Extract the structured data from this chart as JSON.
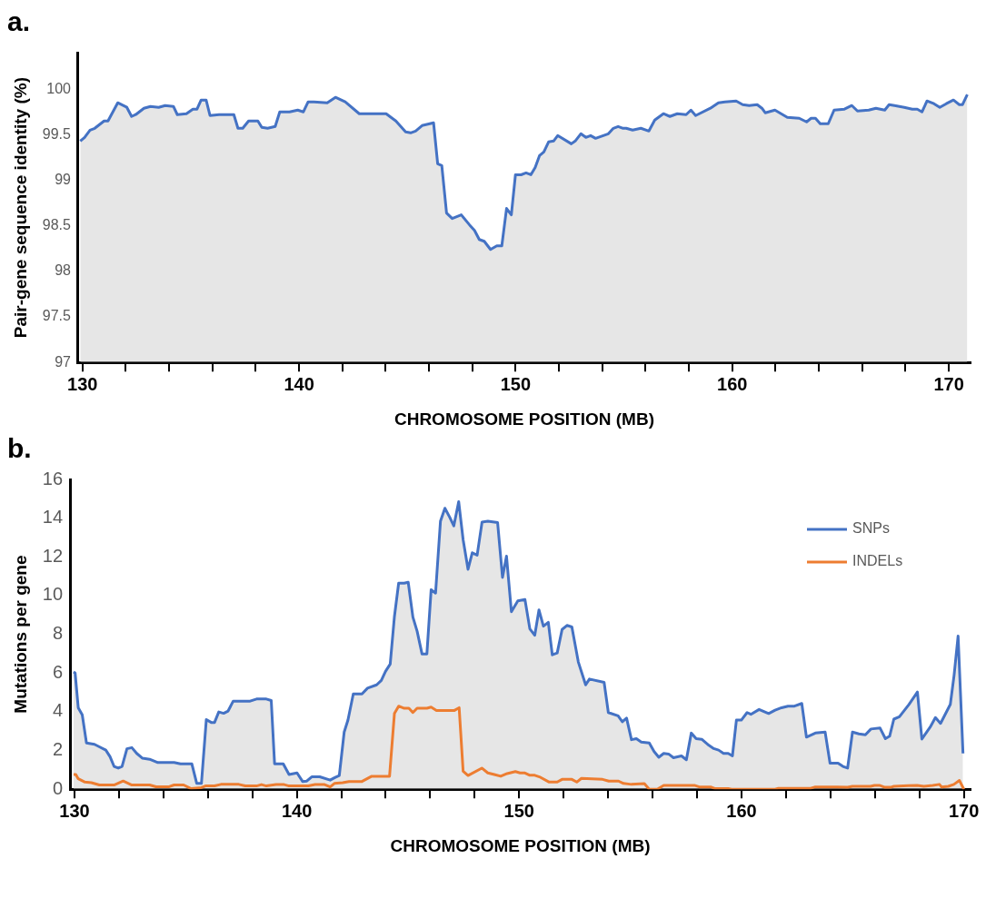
{
  "chart_data": [
    {
      "type": "area",
      "title": "a.",
      "xlabel": "CHROMOSOME POSITION (MB)",
      "ylabel": "Pair-gene sequence identity (%)",
      "xlim": [
        129.8,
        171
      ],
      "xticks": [
        130,
        {
          "value": 132,
          "label": null
        },
        {
          "value": 134,
          "label": null
        },
        {
          "value": 136,
          "label": null
        },
        {
          "value": 138,
          "label": null
        },
        140,
        {
          "value": 142,
          "label": null
        },
        {
          "value": 144,
          "label": null
        },
        {
          "value": 146,
          "label": null
        },
        {
          "value": 148,
          "label": null
        },
        150,
        {
          "value": 152,
          "label": null
        },
        {
          "value": 154,
          "label": null
        },
        {
          "value": 156,
          "label": null
        },
        {
          "value": 158,
          "label": null
        },
        160,
        {
          "value": 162,
          "label": null
        },
        {
          "value": 164,
          "label": null
        },
        {
          "value": 166,
          "label": null
        },
        {
          "value": 168,
          "label": null
        },
        170
      ],
      "ylim": [
        97,
        100.4
      ],
      "yticks": [
        97,
        97.5,
        98,
        98.5,
        99,
        99.5,
        100
      ],
      "grid": false,
      "legend": false,
      "series": [
        {
          "color": "#4472c4",
          "x": [
            129.9,
            130.1,
            130.35,
            130.57,
            131.0,
            131.18,
            131.63,
            132.05,
            132.27,
            132.46,
            132.84,
            133.14,
            133.52,
            133.82,
            134.2,
            134.38,
            134.8,
            135.1,
            135.29,
            135.48,
            135.71,
            135.89,
            136.31,
            136.6,
            136.99,
            137.18,
            137.4,
            137.67,
            138.1,
            138.28,
            138.55,
            138.9,
            139.11,
            139.56,
            139.94,
            140.2,
            140.42,
            140.69,
            141.3,
            141.68,
            142.13,
            142.78,
            143.26,
            144.02,
            144.47,
            144.92,
            145.15,
            145.38,
            145.68,
            146.21,
            146.4,
            146.59,
            146.81,
            147.07,
            147.49,
            147.87,
            148.1,
            148.32,
            148.55,
            148.84,
            149.13,
            149.36,
            149.58,
            149.8,
            149.99,
            150.25,
            150.48,
            150.7,
            150.9,
            151.1,
            151.3,
            151.52,
            151.75,
            151.94,
            152.57,
            152.75,
            153.01,
            153.24,
            153.46,
            153.69,
            154.28,
            154.51,
            154.73,
            154.96,
            155.1,
            155.4,
            155.78,
            156.15,
            156.42,
            156.82,
            157.12,
            157.46,
            157.87,
            158.09,
            158.31,
            158.99,
            159.36,
            159.66,
            160.18,
            160.48,
            160.78,
            161.15,
            161.37,
            161.52,
            161.97,
            162.54,
            163.09,
            163.43,
            163.64,
            163.84,
            164.06,
            164.43,
            164.7,
            165.18,
            165.52,
            165.78,
            166.3,
            166.63,
            167.04,
            167.24,
            167.49,
            167.94,
            168.31,
            168.54,
            168.76,
            168.99,
            169.31,
            169.58,
            169.88,
            170.21,
            170.48,
            170.63,
            170.85
          ],
          "values": [
            99.43,
            99.47,
            99.55,
            99.57,
            99.65,
            99.65,
            99.85,
            99.8,
            99.7,
            99.72,
            99.79,
            99.81,
            99.8,
            99.82,
            99.81,
            99.72,
            99.73,
            99.78,
            99.78,
            99.88,
            99.88,
            99.71,
            99.72,
            99.72,
            99.72,
            99.57,
            99.57,
            99.65,
            99.65,
            99.58,
            99.57,
            99.59,
            99.75,
            99.75,
            99.77,
            99.75,
            99.86,
            99.86,
            99.85,
            99.91,
            99.86,
            99.73,
            99.73,
            99.73,
            99.65,
            99.53,
            99.52,
            99.54,
            99.6,
            99.63,
            99.18,
            99.16,
            98.64,
            98.58,
            98.62,
            98.51,
            98.45,
            98.35,
            98.33,
            98.24,
            98.28,
            98.28,
            98.69,
            98.62,
            99.06,
            99.06,
            99.08,
            99.06,
            99.14,
            99.27,
            99.31,
            99.42,
            99.43,
            99.49,
            99.4,
            99.43,
            99.51,
            99.47,
            99.49,
            99.46,
            99.51,
            99.57,
            99.59,
            99.57,
            99.57,
            99.55,
            99.57,
            99.54,
            99.66,
            99.73,
            99.7,
            99.73,
            99.72,
            99.77,
            99.71,
            99.79,
            99.85,
            99.86,
            99.87,
            99.83,
            99.82,
            99.83,
            99.79,
            99.74,
            99.77,
            99.69,
            99.68,
            99.64,
            99.68,
            99.68,
            99.62,
            99.62,
            99.77,
            99.78,
            99.82,
            99.76,
            99.77,
            99.79,
            99.77,
            99.83,
            99.82,
            99.8,
            99.78,
            99.78,
            99.75,
            99.87,
            99.84,
            99.8,
            99.84,
            99.88,
            99.83,
            99.83,
            99.94
          ]
        }
      ]
    },
    {
      "type": "area",
      "title": "b.",
      "xlabel": "CHROMOSOME POSITION (MB)",
      "ylabel": "Mutations per gene",
      "xlim": [
        129.8,
        170.3
      ],
      "xticks": [
        130,
        {
          "value": 132,
          "label": null
        },
        {
          "value": 134,
          "label": null
        },
        {
          "value": 136,
          "label": null
        },
        {
          "value": 138,
          "label": null
        },
        140,
        {
          "value": 142,
          "label": null
        },
        {
          "value": 144,
          "label": null
        },
        {
          "value": 146,
          "label": null
        },
        {
          "value": 148,
          "label": null
        },
        150,
        {
          "value": 152,
          "label": null
        },
        {
          "value": 154,
          "label": null
        },
        {
          "value": 156,
          "label": null
        },
        {
          "value": 158,
          "label": null
        },
        160,
        {
          "value": 162,
          "label": null
        },
        {
          "value": 164,
          "label": null
        },
        {
          "value": 166,
          "label": null
        },
        {
          "value": 168,
          "label": null
        },
        170
      ],
      "ylim": [
        0,
        16
      ],
      "yticks": [
        0,
        2,
        4,
        6,
        8,
        10,
        12,
        14,
        16
      ],
      "grid": false,
      "legend": "top right",
      "series": [
        {
          "name": "SNPs",
          "color": "#4472c4",
          "x": [
            129.96,
            130.03,
            130.17,
            130.35,
            130.54,
            130.9,
            131.12,
            131.41,
            131.6,
            131.78,
            131.97,
            132.14,
            132.36,
            132.58,
            132.8,
            133.06,
            133.38,
            133.75,
            134.48,
            134.77,
            135.28,
            135.5,
            135.71,
            135.93,
            136.15,
            136.3,
            136.49,
            136.71,
            136.91,
            137.14,
            137.9,
            138.19,
            138.63,
            138.85,
            139.0,
            139.39,
            139.65,
            140.01,
            140.26,
            140.45,
            140.67,
            141.03,
            141.5,
            141.69,
            141.91,
            142.13,
            142.3,
            142.54,
            142.93,
            143.18,
            143.59,
            143.8,
            143.99,
            144.2,
            144.39,
            144.58,
            144.83,
            145.01,
            145.22,
            145.41,
            145.63,
            145.85,
            146.04,
            146.24,
            146.46,
            146.66,
            146.87,
            147.06,
            147.28,
            147.48,
            147.7,
            147.89,
            148.11,
            148.33,
            148.59,
            149.03,
            149.25,
            149.43,
            149.65,
            149.94,
            150.26,
            150.48,
            150.7,
            150.89,
            151.09,
            151.31,
            151.49,
            151.71,
            151.93,
            152.15,
            152.37,
            152.66,
            152.99,
            153.16,
            153.82,
            154.01,
            154.45,
            154.64,
            154.83,
            155.05,
            155.27,
            155.49,
            155.85,
            156.07,
            156.28,
            156.5,
            156.72,
            156.94,
            157.3,
            157.52,
            157.74,
            157.96,
            158.21,
            158.53,
            158.75,
            158.97,
            159.19,
            159.4,
            159.59,
            159.77,
            159.99,
            160.25,
            160.42,
            160.79,
            161.22,
            161.51,
            161.8,
            162.09,
            162.38,
            162.71,
            162.92,
            163.32,
            163.76,
            163.98,
            164.34,
            164.56,
            164.77,
            164.99,
            165.28,
            165.57,
            165.82,
            166.23,
            166.47,
            166.66,
            166.85,
            167.1,
            167.53,
            167.91,
            168.11,
            168.48,
            168.72,
            168.95,
            169.39,
            169.56,
            169.74,
            169.96
          ],
          "values": [
            6.06,
            6.0,
            4.21,
            3.84,
            2.39,
            2.32,
            2.19,
            2.02,
            1.68,
            1.18,
            1.09,
            1.18,
            2.09,
            2.15,
            1.85,
            1.6,
            1.55,
            1.38,
            1.38,
            1.31,
            1.31,
            0.3,
            0.3,
            3.6,
            3.45,
            3.45,
            3.99,
            3.92,
            4.04,
            4.55,
            4.55,
            4.66,
            4.66,
            4.58,
            1.31,
            1.31,
            0.76,
            0.84,
            0.4,
            0.42,
            0.64,
            0.64,
            0.47,
            0.59,
            0.71,
            2.95,
            3.57,
            4.92,
            4.92,
            5.22,
            5.39,
            5.62,
            6.09,
            6.46,
            8.92,
            10.64,
            10.64,
            10.69,
            8.89,
            8.16,
            6.99,
            6.99,
            10.3,
            10.13,
            13.84,
            14.51,
            14.06,
            13.6,
            14.85,
            12.88,
            11.36,
            12.21,
            12.09,
            13.8,
            13.84,
            13.77,
            10.94,
            12.04,
            9.17,
            9.73,
            9.8,
            8.28,
            7.95,
            9.26,
            8.42,
            8.62,
            6.94,
            7.04,
            8.25,
            8.46,
            8.38,
            6.57,
            5.39,
            5.69,
            5.52,
            3.96,
            3.79,
            3.48,
            3.67,
            2.56,
            2.61,
            2.44,
            2.39,
            1.94,
            1.65,
            1.85,
            1.82,
            1.63,
            1.72,
            1.52,
            2.9,
            2.61,
            2.58,
            2.27,
            2.1,
            2.02,
            1.85,
            1.85,
            1.72,
            3.57,
            3.57,
            3.96,
            3.87,
            4.12,
            3.91,
            4.08,
            4.21,
            4.29,
            4.29,
            4.43,
            2.69,
            2.9,
            2.95,
            1.35,
            1.35,
            1.18,
            1.09,
            2.95,
            2.86,
            2.81,
            3.11,
            3.16,
            2.61,
            2.74,
            3.62,
            3.74,
            4.38,
            5.02,
            2.59,
            3.2,
            3.7,
            3.4,
            4.38,
            5.89,
            7.91,
            1.85
          ]
        },
        {
          "name": "INDELs",
          "type": "line",
          "color": "#ed7d31",
          "x": [
            129.96,
            130.06,
            130.17,
            130.47,
            130.76,
            131.12,
            131.78,
            132.19,
            132.58,
            133.38,
            133.67,
            134.26,
            134.48,
            134.91,
            135.25,
            135.71,
            135.89,
            136.3,
            136.59,
            137.39,
            137.68,
            138.19,
            138.41,
            138.63,
            139.07,
            139.43,
            139.65,
            140.52,
            140.82,
            141.25,
            141.5,
            141.69,
            142.06,
            142.35,
            142.93,
            143.37,
            144.17,
            144.39,
            144.58,
            144.83,
            145.04,
            145.22,
            145.41,
            145.85,
            146.04,
            146.28,
            147.09,
            147.3,
            147.48,
            147.7,
            148.32,
            148.59,
            148.88,
            149.17,
            149.46,
            149.83,
            150.04,
            150.26,
            150.48,
            150.7,
            150.91,
            151.35,
            151.71,
            151.93,
            152.37,
            152.59,
            152.8,
            153.75,
            154.03,
            154.47,
            154.69,
            155.05,
            155.63,
            155.85,
            156.21,
            156.5,
            157.88,
            158.1,
            158.61,
            158.82,
            159.4,
            159.55,
            161.51,
            161.66,
            163.11,
            163.32,
            164.3,
            164.77,
            164.99,
            165.8,
            165.98,
            166.2,
            166.45,
            166.7,
            166.85,
            167.5,
            167.9,
            168.2,
            168.6,
            168.9,
            169.0,
            169.3,
            169.55,
            169.8,
            170.0
          ],
          "values": [
            0.76,
            0.76,
            0.54,
            0.37,
            0.34,
            0.22,
            0.22,
            0.42,
            0.22,
            0.22,
            0.13,
            0.13,
            0.22,
            0.22,
            0.03,
            0.08,
            0.17,
            0.17,
            0.25,
            0.25,
            0.17,
            0.17,
            0.24,
            0.17,
            0.24,
            0.24,
            0.17,
            0.17,
            0.24,
            0.24,
            0.12,
            0.3,
            0.34,
            0.4,
            0.4,
            0.67,
            0.67,
            3.91,
            4.29,
            4.18,
            4.18,
            3.96,
            4.18,
            4.18,
            4.24,
            4.07,
            4.07,
            4.21,
            0.93,
            0.71,
            1.09,
            0.84,
            0.76,
            0.67,
            0.81,
            0.91,
            0.84,
            0.84,
            0.72,
            0.72,
            0.64,
            0.37,
            0.37,
            0.51,
            0.51,
            0.37,
            0.56,
            0.51,
            0.42,
            0.42,
            0.3,
            0.25,
            0.29,
            0,
            0,
            0.2,
            0.2,
            0.12,
            0.12,
            0.03,
            0.03,
            0,
            0,
            0.05,
            0.05,
            0.12,
            0.12,
            0.1,
            0.15,
            0.15,
            0.2,
            0.2,
            0.1,
            0.1,
            0.15,
            0.18,
            0.2,
            0.15,
            0.2,
            0.25,
            0.12,
            0.15,
            0.25,
            0.45,
            0
          ]
        }
      ]
    }
  ]
}
